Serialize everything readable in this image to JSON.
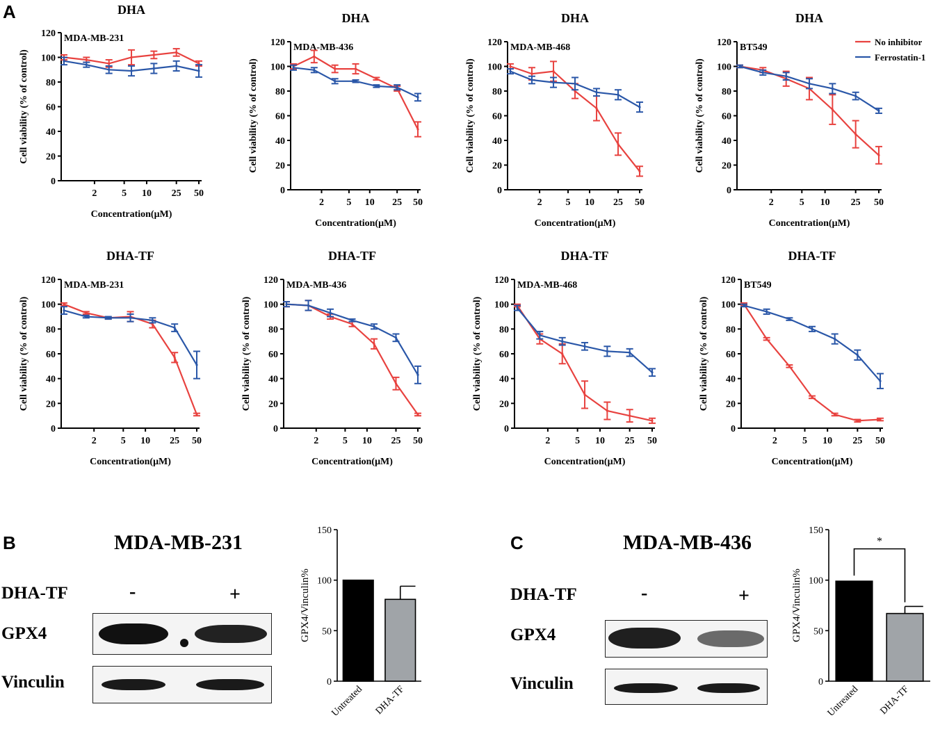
{
  "panel_letters": {
    "a": "A",
    "b": "B",
    "c": "C"
  },
  "line_legend": [
    {
      "name": "No inhibitor",
      "color": "#e8423f"
    },
    {
      "name": "Ferrostatin-1",
      "color": "#2a57a8"
    }
  ],
  "blot_b": {
    "title": "MDA-MB-231",
    "treatment_label": "DHA-TF",
    "minus": "-",
    "plus": "+",
    "row1": "GPX4",
    "row2": "Vinculin"
  },
  "blot_c": {
    "title": "MDA-MB-436",
    "treatment_label": "DHA-TF",
    "minus": "-",
    "plus": "+",
    "row1": "GPX4",
    "row2": "Vinculin"
  },
  "chart_data": [
    {
      "type": "line",
      "title": "DHA",
      "subtitle": "MDA-MB-231",
      "xlabel": "Concentration(μM)",
      "ylabel": "Cell viability (% of control)",
      "ylim": [
        0,
        120
      ],
      "x": [
        0.78,
        1.56,
        3.125,
        6.25,
        12.5,
        25,
        50
      ],
      "x_ticks": [
        2,
        5,
        10,
        25,
        50
      ],
      "y_ticks": [
        0,
        20,
        40,
        60,
        80,
        100,
        120
      ],
      "series": [
        {
          "name": "No inhibitor",
          "values": [
            100,
            98,
            95,
            100,
            102,
            104,
            95
          ],
          "errors": [
            2,
            2,
            3,
            6,
            3,
            3,
            2
          ]
        },
        {
          "name": "Ferrostatin-1",
          "values": [
            97,
            94,
            90,
            89,
            91,
            93,
            89
          ],
          "errors": [
            3,
            2,
            3,
            4,
            4,
            4,
            5
          ]
        }
      ]
    },
    {
      "type": "line",
      "title": "DHA",
      "subtitle": "MDA-MB-436",
      "xlabel": "Concentration(μM)",
      "ylabel": "Cell viability (% of control)",
      "ylim": [
        0,
        120
      ],
      "x": [
        0.78,
        1.56,
        3.125,
        6.25,
        12.5,
        25,
        50
      ],
      "x_ticks": [
        2,
        5,
        10,
        25,
        50
      ],
      "y_ticks": [
        0,
        20,
        40,
        60,
        80,
        100,
        120
      ],
      "series": [
        {
          "name": "No inhibitor",
          "values": [
            100,
            108,
            98,
            98,
            90,
            82,
            49
          ],
          "errors": [
            2,
            5,
            3,
            4,
            1,
            2,
            6
          ]
        },
        {
          "name": "Ferrostatin-1",
          "values": [
            99,
            97,
            88,
            88,
            84,
            83,
            75
          ],
          "errors": [
            2,
            2,
            2,
            1,
            1,
            2,
            3
          ]
        }
      ]
    },
    {
      "type": "line",
      "title": "DHA",
      "subtitle": "MDA-MB-468",
      "xlabel": "Concentration(μM)",
      "ylabel": "Cell viability (% of control)",
      "ylim": [
        0,
        120
      ],
      "x": [
        0.78,
        1.56,
        3.125,
        6.25,
        12.5,
        25,
        50
      ],
      "x_ticks": [
        2,
        5,
        10,
        25,
        50
      ],
      "y_ticks": [
        0,
        20,
        40,
        60,
        80,
        100,
        120
      ],
      "series": [
        {
          "name": "No inhibitor",
          "values": [
            100,
            94,
            96,
            80,
            66,
            37,
            15
          ],
          "errors": [
            2,
            5,
            8,
            6,
            10,
            9,
            4
          ]
        },
        {
          "name": "Ferrostatin-1",
          "values": [
            96,
            89,
            87,
            86,
            79,
            77,
            67
          ],
          "errors": [
            2,
            3,
            4,
            5,
            3,
            4,
            4
          ]
        }
      ]
    },
    {
      "type": "line",
      "title": "DHA",
      "subtitle": "BT549",
      "xlabel": "Concentration(μM)",
      "ylabel": "Cell viability (% of control)",
      "ylim": [
        0,
        120
      ],
      "x": [
        0.78,
        1.56,
        3.125,
        6.25,
        12.5,
        25,
        50
      ],
      "x_ticks": [
        2,
        5,
        10,
        25,
        50
      ],
      "y_ticks": [
        0,
        20,
        40,
        60,
        80,
        100,
        120
      ],
      "series": [
        {
          "name": "No inhibitor",
          "values": [
            100,
            97,
            90,
            82,
            65,
            45,
            28
          ],
          "errors": [
            1,
            2,
            6,
            9,
            12,
            11,
            7
          ]
        },
        {
          "name": "Ferrostatin-1",
          "values": [
            100,
            95,
            92,
            86,
            82,
            76,
            64
          ],
          "errors": [
            1,
            2,
            3,
            4,
            4,
            3,
            2
          ]
        }
      ]
    },
    {
      "type": "line",
      "title": "DHA-TF",
      "subtitle": "MDA-MB-231",
      "xlabel": "Concentration(μM)",
      "ylabel": "Cell viability (% of control)",
      "ylim": [
        0,
        120
      ],
      "x": [
        0.78,
        1.56,
        3.125,
        6.25,
        12.5,
        25,
        50
      ],
      "x_ticks": [
        2,
        5,
        10,
        25,
        50
      ],
      "y_ticks": [
        0,
        20,
        40,
        60,
        80,
        100,
        120
      ],
      "series": [
        {
          "name": "No inhibitor",
          "values": [
            100,
            93,
            89,
            90,
            84,
            57,
            11
          ],
          "errors": [
            1,
            1,
            1,
            4,
            3,
            4,
            1
          ]
        },
        {
          "name": "Ferrostatin-1",
          "values": [
            95,
            90,
            89,
            89,
            87,
            81,
            51
          ],
          "errors": [
            3,
            1,
            1,
            3,
            2,
            3,
            11
          ]
        }
      ]
    },
    {
      "type": "line",
      "title": "DHA-TF",
      "subtitle": "MDA-MB-436",
      "xlabel": "Concentration(μM)",
      "ylabel": "Cell viability (% of control)",
      "ylim": [
        0,
        120
      ],
      "x": [
        0.78,
        1.56,
        3.125,
        6.25,
        12.5,
        25,
        50
      ],
      "x_ticks": [
        2,
        5,
        10,
        25,
        50
      ],
      "y_ticks": [
        0,
        20,
        40,
        60,
        80,
        100,
        120
      ],
      "series": [
        {
          "name": "No inhibitor",
          "values": [
            100,
            99,
            90,
            84,
            68,
            36,
            11
          ],
          "errors": [
            2,
            4,
            2,
            2,
            4,
            5,
            1
          ]
        },
        {
          "name": "Ferrostatin-1",
          "values": [
            100,
            99,
            93,
            87,
            82,
            73,
            43
          ],
          "errors": [
            2,
            4,
            3,
            1,
            2,
            3,
            7
          ]
        }
      ]
    },
    {
      "type": "line",
      "title": "DHA-TF",
      "subtitle": "MDA-MB-468",
      "xlabel": "Concentration(μM)",
      "ylabel": "Cell viability (% of control)",
      "ylim": [
        0,
        120
      ],
      "x": [
        0.78,
        1.56,
        3.125,
        6.25,
        12.5,
        25,
        50
      ],
      "x_ticks": [
        2,
        5,
        10,
        25,
        50
      ],
      "y_ticks": [
        0,
        20,
        40,
        60,
        80,
        100,
        120
      ],
      "series": [
        {
          "name": "No inhibitor",
          "values": [
            99,
            72,
            60,
            27,
            14,
            10,
            6
          ],
          "errors": [
            1,
            4,
            8,
            11,
            7,
            5,
            2
          ]
        },
        {
          "name": "Ferrostatin-1",
          "values": [
            97,
            75,
            70,
            66,
            62,
            61,
            45
          ],
          "errors": [
            2,
            3,
            3,
            3,
            4,
            3,
            3
          ]
        }
      ]
    },
    {
      "type": "line",
      "title": "DHA-TF",
      "subtitle": "BT549",
      "xlabel": "Concentration(μM)",
      "ylabel": "Cell viability (% of control)",
      "ylim": [
        0,
        120
      ],
      "x": [
        0.78,
        1.56,
        3.125,
        6.25,
        12.5,
        25,
        50
      ],
      "x_ticks": [
        2,
        5,
        10,
        25,
        50
      ],
      "y_ticks": [
        0,
        20,
        40,
        60,
        80,
        100,
        120
      ],
      "series": [
        {
          "name": "No inhibitor",
          "values": [
            100,
            72,
            50,
            25,
            11,
            6,
            7
          ],
          "errors": [
            1,
            1,
            1,
            1,
            1,
            1,
            1
          ]
        },
        {
          "name": "Ferrostatin-1",
          "values": [
            99,
            94,
            88,
            80,
            72,
            59,
            38
          ],
          "errors": [
            1,
            2,
            1,
            2,
            4,
            4,
            6
          ]
        }
      ]
    },
    {
      "type": "bar",
      "title": "",
      "ylabel": "GPX4/Vinculin%",
      "ylim": [
        0,
        150
      ],
      "y_ticks": [
        0,
        50,
        100,
        150
      ],
      "categories": [
        "Untreated",
        "DHA-TF"
      ],
      "values": [
        100,
        81
      ],
      "errors": [
        0,
        13
      ],
      "colors": [
        "#000000",
        "#a0a4a8"
      ],
      "annotation": ""
    },
    {
      "type": "bar",
      "title": "",
      "ylabel": "GPX4/Vinculin%",
      "ylim": [
        0,
        150
      ],
      "y_ticks": [
        0,
        50,
        100,
        150
      ],
      "categories": [
        "Untreated",
        "DHA-TF"
      ],
      "values": [
        99,
        67
      ],
      "errors": [
        0,
        7
      ],
      "colors": [
        "#000000",
        "#a0a4a8"
      ],
      "annotation": "*"
    }
  ]
}
